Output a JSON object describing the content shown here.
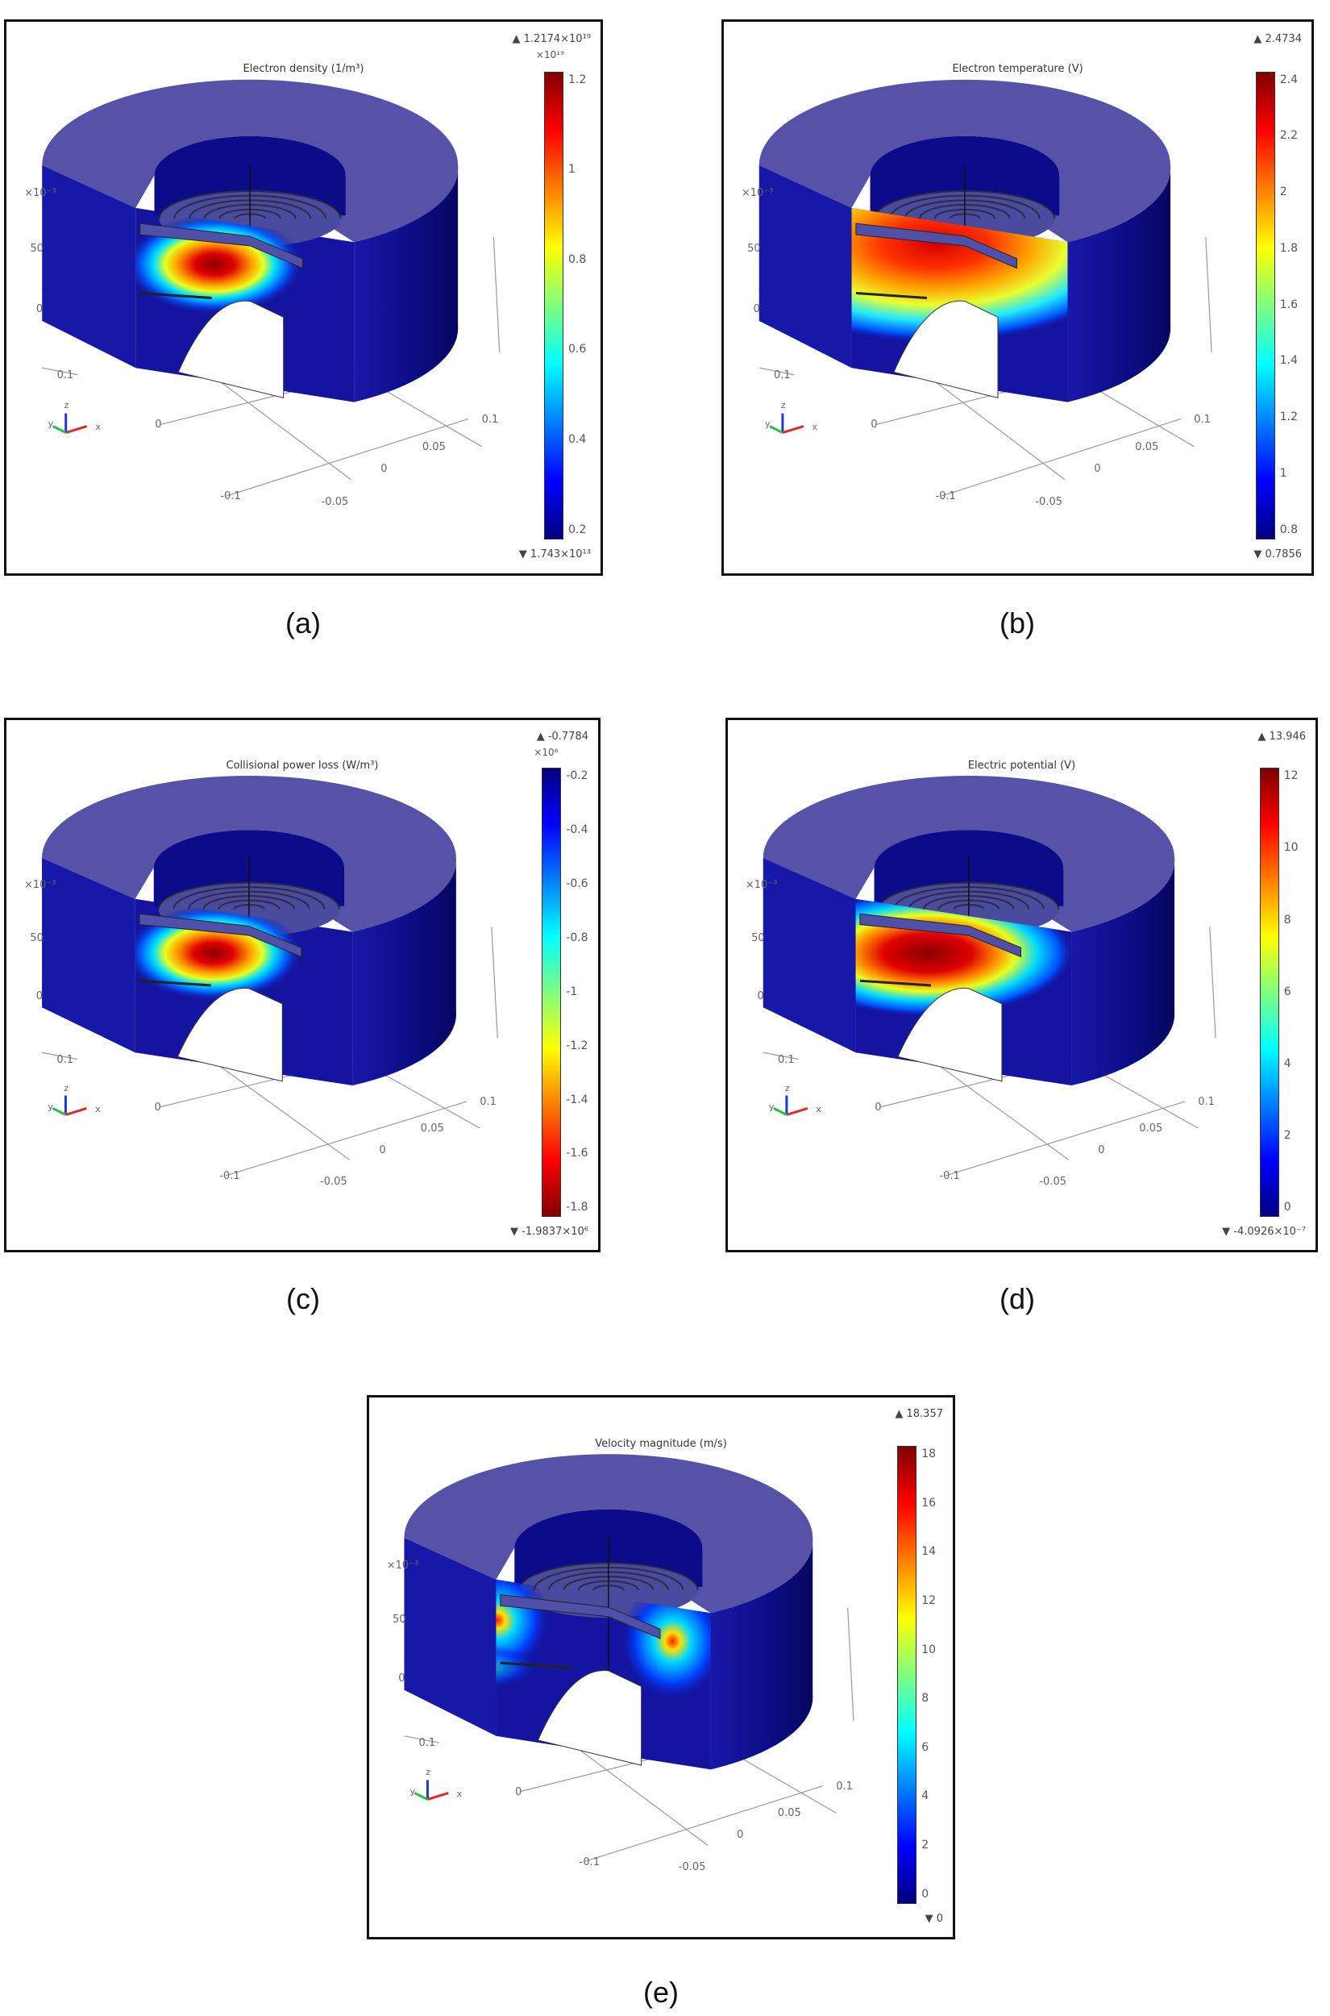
{
  "figure": {
    "captions": [
      "(a)",
      "(b)",
      "(c)",
      "(d)",
      "(e)"
    ]
  },
  "panels": [
    {
      "id": "a",
      "title": "Electron density (1/m³)",
      "colorbar": {
        "max_label": "▲ 1.2174×10¹⁹",
        "multiplier": "×10¹⁹",
        "ticks": [
          "1.2",
          "1",
          "0.8",
          "0.6",
          "0.4",
          "0.2"
        ],
        "min_label": "▼ 1.743×10¹³",
        "direction": "normal"
      },
      "axes": {
        "zscale": "×10⁻³",
        "z_ticks": [
          "50",
          "0"
        ],
        "y_ticks": [
          "0.1",
          "0",
          "-0.1"
        ],
        "x_ticks": [
          "0.1",
          "0.05",
          "0",
          "-0.05"
        ],
        "triad": [
          "y",
          "z",
          "x"
        ]
      },
      "hotspot": "center"
    },
    {
      "id": "b",
      "title": "Electron temperature (V)",
      "colorbar": {
        "max_label": "▲ 2.4734",
        "multiplier": "",
        "ticks": [
          "2.4",
          "2.2",
          "2",
          "1.8",
          "1.6",
          "1.4",
          "1.2",
          "1",
          "0.8"
        ],
        "min_label": "▼ 0.7856",
        "direction": "normal"
      },
      "axes": {
        "zscale": "×10⁻³",
        "z_ticks": [
          "50",
          "0"
        ],
        "y_ticks": [
          "0.1",
          "0",
          "-0.1"
        ],
        "x_ticks": [
          "0.1",
          "0.05",
          "0",
          "-0.05"
        ],
        "triad": [
          "y",
          "z",
          "x"
        ]
      },
      "hotspot": "wide-top"
    },
    {
      "id": "c",
      "title": "Collisional power loss (W/m³)",
      "colorbar": {
        "max_label": "▲ -0.7784",
        "multiplier": "×10⁶",
        "ticks": [
          "-0.2",
          "-0.4",
          "-0.6",
          "-0.8",
          "-1",
          "-1.2",
          "-1.4",
          "-1.6",
          "-1.8"
        ],
        "min_label": "▼ -1.9837×10⁶",
        "direction": "inverted"
      },
      "axes": {
        "zscale": "×10⁻³",
        "z_ticks": [
          "50",
          "0"
        ],
        "y_ticks": [
          "0.1",
          "0",
          "-0.1"
        ],
        "x_ticks": [
          "0.1",
          "0.05",
          "0",
          "-0.05"
        ],
        "triad": [
          "y",
          "z",
          "x"
        ]
      },
      "hotspot": "center"
    },
    {
      "id": "d",
      "title": "Electric potential (V)",
      "colorbar": {
        "max_label": "▲ 13.946",
        "multiplier": "",
        "ticks": [
          "12",
          "10",
          "8",
          "6",
          "4",
          "2",
          "0"
        ],
        "min_label": "▼ -4.0926×10⁻⁷",
        "direction": "normal"
      },
      "axes": {
        "zscale": "×10⁻³",
        "z_ticks": [
          "50",
          "0"
        ],
        "y_ticks": [
          "0.1",
          "0",
          "-0.1"
        ],
        "x_ticks": [
          "0.1",
          "0.05",
          "0",
          "-0.05"
        ],
        "triad": [
          "y",
          "z",
          "x"
        ]
      },
      "hotspot": "wide"
    },
    {
      "id": "e",
      "title": "Velocity magnitude (m/s)",
      "colorbar": {
        "max_label": "▲ 18.357",
        "multiplier": "",
        "ticks": [
          "18",
          "16",
          "14",
          "12",
          "10",
          "8",
          "6",
          "4",
          "2",
          "0"
        ],
        "min_label": "▼ 0",
        "direction": "normal"
      },
      "axes": {
        "zscale": "×10⁻³",
        "z_ticks": [
          "50",
          "0"
        ],
        "y_ticks": [
          "0.1",
          "0",
          "-0.1"
        ],
        "x_ticks": [
          "0.1",
          "0.05",
          "0",
          "-0.05"
        ],
        "triad": [
          "y",
          "z",
          "x"
        ]
      },
      "hotspot": "edges"
    }
  ],
  "colors": {
    "top_surface": "#5552a8",
    "side_dark": "#0c0c84",
    "side_mid": "#1818a8",
    "frame": "#111111",
    "axis_line": "#9a9a9a"
  }
}
